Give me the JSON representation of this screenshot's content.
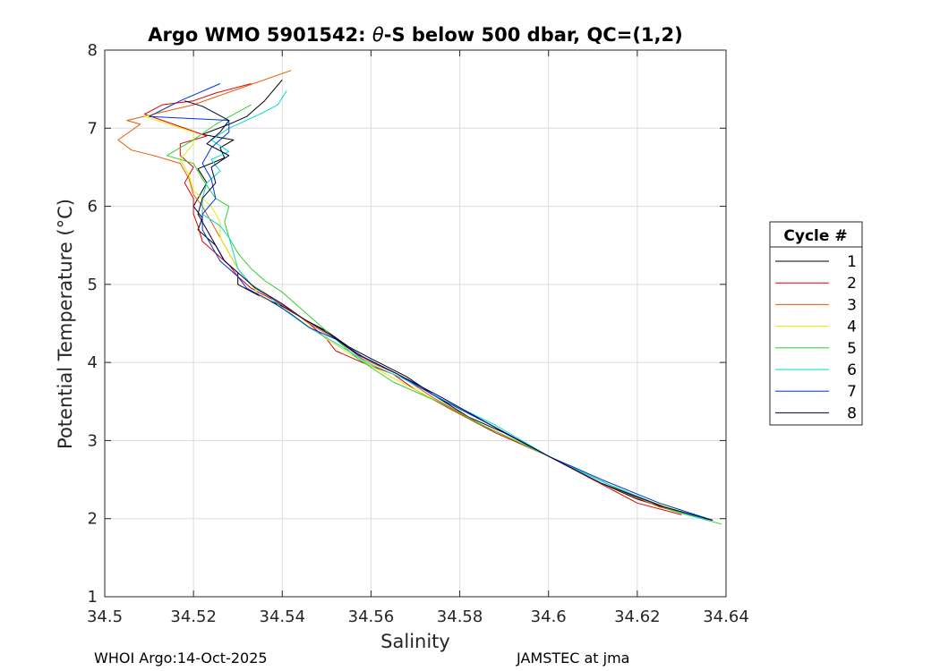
{
  "chart_data": {
    "type": "line",
    "title_prefix": "Argo WMO 5901542: ",
    "title_theta": "θ",
    "title_suffix": "-S below 500 dbar,  QC=(1,2)",
    "xlabel": "Salinity",
    "ylabel": "Potential Temperature (°C)",
    "xlim": [
      34.5,
      34.64
    ],
    "ylim": [
      1,
      8
    ],
    "xticks": [
      34.5,
      34.52,
      34.54,
      34.56,
      34.58,
      34.6,
      34.62,
      34.64
    ],
    "xtick_labels": [
      "34.5",
      "34.52",
      "34.54",
      "34.56",
      "34.58",
      "34.6",
      "34.62",
      "34.64"
    ],
    "yticks": [
      1,
      2,
      3,
      4,
      5,
      6,
      7,
      8
    ],
    "ytick_labels": [
      "1",
      "2",
      "3",
      "4",
      "5",
      "6",
      "7",
      "8"
    ],
    "grid": true,
    "legend_title": "Cycle #",
    "legend_position": "outside-right",
    "series": [
      {
        "name": "1",
        "color": "#000000",
        "points": [
          [
            34.54,
            7.62
          ],
          [
            34.536,
            7.35
          ],
          [
            34.532,
            7.15
          ],
          [
            34.528,
            7.05
          ],
          [
            34.522,
            6.92
          ],
          [
            34.529,
            6.85
          ],
          [
            34.526,
            6.75
          ],
          [
            34.527,
            6.62
          ],
          [
            34.521,
            6.48
          ],
          [
            34.523,
            6.3
          ],
          [
            34.521,
            6.1
          ],
          [
            34.52,
            6.0
          ],
          [
            34.522,
            5.85
          ],
          [
            34.521,
            5.7
          ],
          [
            34.525,
            5.5
          ],
          [
            34.527,
            5.3
          ],
          [
            34.53,
            5.15
          ],
          [
            34.53,
            5.0
          ],
          [
            34.535,
            4.85
          ],
          [
            34.54,
            4.72
          ],
          [
            34.545,
            4.55
          ],
          [
            34.55,
            4.4
          ],
          [
            34.555,
            4.2
          ],
          [
            34.56,
            4.05
          ],
          [
            34.568,
            3.82
          ],
          [
            34.575,
            3.55
          ],
          [
            34.582,
            3.3
          ],
          [
            34.59,
            3.1
          ],
          [
            34.6,
            2.8
          ],
          [
            34.61,
            2.5
          ],
          [
            34.62,
            2.25
          ],
          [
            34.63,
            2.07
          ],
          [
            34.637,
            1.98
          ]
        ]
      },
      {
        "name": "2",
        "color": "#e00000",
        "points": [
          [
            34.533,
            7.57
          ],
          [
            34.525,
            7.45
          ],
          [
            34.52,
            7.35
          ],
          [
            34.513,
            7.3
          ],
          [
            34.509,
            7.18
          ],
          [
            34.523,
            6.9
          ],
          [
            34.517,
            6.8
          ],
          [
            34.517,
            6.65
          ],
          [
            34.52,
            6.5
          ],
          [
            34.518,
            6.3
          ],
          [
            34.52,
            6.1
          ],
          [
            34.52,
            5.9
          ],
          [
            34.521,
            5.75
          ],
          [
            34.522,
            5.55
          ],
          [
            34.525,
            5.4
          ],
          [
            34.528,
            5.25
          ],
          [
            34.53,
            5.1
          ],
          [
            34.533,
            4.95
          ],
          [
            34.538,
            4.8
          ],
          [
            34.545,
            4.55
          ],
          [
            34.55,
            4.3
          ],
          [
            34.552,
            4.15
          ],
          [
            34.558,
            4.0
          ],
          [
            34.565,
            3.85
          ],
          [
            34.57,
            3.65
          ],
          [
            34.578,
            3.4
          ],
          [
            34.588,
            3.1
          ],
          [
            34.6,
            2.8
          ],
          [
            34.61,
            2.5
          ],
          [
            34.62,
            2.2
          ],
          [
            34.63,
            2.05
          ]
        ]
      },
      {
        "name": "3",
        "color": "#e85a00",
        "points": [
          [
            34.542,
            7.74
          ],
          [
            34.53,
            7.5
          ],
          [
            34.52,
            7.3
          ],
          [
            34.505,
            7.1
          ],
          [
            34.508,
            7.05
          ],
          [
            34.503,
            6.85
          ],
          [
            34.506,
            6.72
          ],
          [
            34.511,
            6.65
          ],
          [
            34.517,
            6.55
          ],
          [
            34.519,
            6.35
          ],
          [
            34.52,
            6.15
          ],
          [
            34.522,
            6.0
          ],
          [
            34.524,
            5.8
          ],
          [
            34.526,
            5.6
          ],
          [
            34.528,
            5.4
          ],
          [
            34.53,
            5.2
          ],
          [
            34.533,
            5.0
          ],
          [
            34.54,
            4.75
          ],
          [
            34.546,
            4.5
          ],
          [
            34.552,
            4.3
          ],
          [
            34.558,
            4.05
          ],
          [
            34.566,
            3.85
          ],
          [
            34.574,
            3.55
          ],
          [
            34.585,
            3.2
          ],
          [
            34.6,
            2.8
          ],
          [
            34.612,
            2.45
          ],
          [
            34.625,
            2.15
          ],
          [
            34.635,
            2.0
          ]
        ]
      },
      {
        "name": "4",
        "color": "#e8e800",
        "points": [
          [
            34.515,
            7.3
          ],
          [
            34.512,
            7.2
          ],
          [
            34.509,
            7.15
          ],
          [
            34.52,
            6.95
          ],
          [
            34.52,
            6.8
          ],
          [
            34.517,
            6.6
          ],
          [
            34.519,
            6.4
          ],
          [
            34.52,
            6.2
          ],
          [
            34.524,
            6.0
          ],
          [
            34.526,
            5.8
          ],
          [
            34.526,
            5.6
          ],
          [
            34.528,
            5.4
          ],
          [
            34.53,
            5.2
          ],
          [
            34.533,
            5.0
          ],
          [
            34.535,
            4.85
          ],
          [
            34.54,
            4.7
          ],
          [
            34.545,
            4.5
          ],
          [
            34.55,
            4.3
          ],
          [
            34.557,
            4.05
          ],
          [
            34.565,
            3.8
          ],
          [
            34.575,
            3.5
          ],
          [
            34.585,
            3.2
          ],
          [
            34.6,
            2.8
          ],
          [
            34.612,
            2.45
          ],
          [
            34.625,
            2.18
          ],
          [
            34.635,
            2.0
          ]
        ]
      },
      {
        "name": "5",
        "color": "#30d030",
        "points": [
          [
            34.533,
            7.3
          ],
          [
            34.525,
            7.05
          ],
          [
            34.52,
            6.85
          ],
          [
            34.514,
            6.65
          ],
          [
            34.52,
            6.55
          ],
          [
            34.522,
            6.35
          ],
          [
            34.525,
            6.1
          ],
          [
            34.528,
            6.0
          ],
          [
            34.527,
            5.8
          ],
          [
            34.528,
            5.6
          ],
          [
            34.53,
            5.4
          ],
          [
            34.533,
            5.2
          ],
          [
            34.536,
            5.05
          ],
          [
            34.54,
            4.9
          ],
          [
            34.543,
            4.75
          ],
          [
            34.547,
            4.55
          ],
          [
            34.552,
            4.3
          ],
          [
            34.557,
            4.05
          ],
          [
            34.565,
            3.75
          ],
          [
            34.575,
            3.5
          ],
          [
            34.585,
            3.2
          ],
          [
            34.6,
            2.8
          ],
          [
            34.615,
            2.4
          ],
          [
            34.628,
            2.1
          ],
          [
            34.639,
            1.93
          ]
        ]
      },
      {
        "name": "6",
        "color": "#00d8d8",
        "points": [
          [
            34.541,
            7.48
          ],
          [
            34.539,
            7.3
          ],
          [
            34.535,
            7.18
          ],
          [
            34.528,
            7.0
          ],
          [
            34.524,
            6.85
          ],
          [
            34.528,
            6.7
          ],
          [
            34.524,
            6.6
          ],
          [
            34.526,
            6.45
          ],
          [
            34.523,
            6.3
          ],
          [
            34.522,
            6.1
          ],
          [
            34.522,
            5.9
          ],
          [
            34.526,
            5.75
          ],
          [
            34.528,
            5.6
          ],
          [
            34.529,
            5.4
          ],
          [
            34.53,
            5.2
          ],
          [
            34.533,
            5.0
          ],
          [
            34.537,
            4.85
          ],
          [
            34.541,
            4.65
          ],
          [
            34.546,
            4.45
          ],
          [
            34.552,
            4.25
          ],
          [
            34.559,
            4.0
          ],
          [
            34.567,
            3.8
          ],
          [
            34.577,
            3.5
          ],
          [
            34.588,
            3.2
          ],
          [
            34.6,
            2.8
          ],
          [
            34.613,
            2.45
          ],
          [
            34.626,
            2.15
          ],
          [
            34.636,
            1.98
          ]
        ]
      },
      {
        "name": "7",
        "color": "#0030e0",
        "points": [
          [
            34.526,
            7.57
          ],
          [
            34.517,
            7.35
          ],
          [
            34.51,
            7.15
          ],
          [
            34.528,
            7.1
          ],
          [
            34.528,
            6.95
          ],
          [
            34.524,
            6.75
          ],
          [
            34.522,
            6.55
          ],
          [
            34.524,
            6.35
          ],
          [
            34.525,
            6.1
          ],
          [
            34.522,
            5.9
          ],
          [
            34.522,
            5.7
          ],
          [
            34.524,
            5.5
          ],
          [
            34.526,
            5.3
          ],
          [
            34.53,
            5.1
          ],
          [
            34.532,
            4.95
          ],
          [
            34.537,
            4.8
          ],
          [
            34.542,
            4.62
          ],
          [
            34.546,
            4.45
          ],
          [
            34.552,
            4.3
          ],
          [
            34.558,
            4.08
          ],
          [
            34.566,
            3.85
          ],
          [
            34.575,
            3.55
          ],
          [
            34.587,
            3.2
          ],
          [
            34.6,
            2.8
          ],
          [
            34.612,
            2.5
          ],
          [
            34.625,
            2.2
          ],
          [
            34.637,
            1.98
          ]
        ]
      },
      {
        "name": "8",
        "color": "#00003a",
        "points": [
          [
            34.518,
            7.35
          ],
          [
            34.522,
            7.28
          ],
          [
            34.528,
            7.1
          ],
          [
            34.526,
            6.95
          ],
          [
            34.523,
            6.8
          ],
          [
            34.528,
            6.65
          ],
          [
            34.524,
            6.5
          ],
          [
            34.525,
            6.3
          ],
          [
            34.522,
            6.1
          ],
          [
            34.521,
            5.9
          ],
          [
            34.523,
            5.7
          ],
          [
            34.525,
            5.5
          ],
          [
            34.527,
            5.3
          ],
          [
            34.531,
            5.1
          ],
          [
            34.534,
            4.95
          ],
          [
            34.54,
            4.75
          ],
          [
            34.545,
            4.55
          ],
          [
            34.551,
            4.35
          ],
          [
            34.557,
            4.1
          ],
          [
            34.566,
            3.85
          ],
          [
            34.576,
            3.55
          ],
          [
            34.587,
            3.2
          ],
          [
            34.6,
            2.8
          ],
          [
            34.612,
            2.45
          ],
          [
            34.626,
            2.15
          ],
          [
            34.637,
            1.98
          ]
        ]
      }
    ]
  },
  "footer": {
    "left": "WHOI Argo:14-Oct-2025",
    "right": "JAMSTEC at jma"
  }
}
